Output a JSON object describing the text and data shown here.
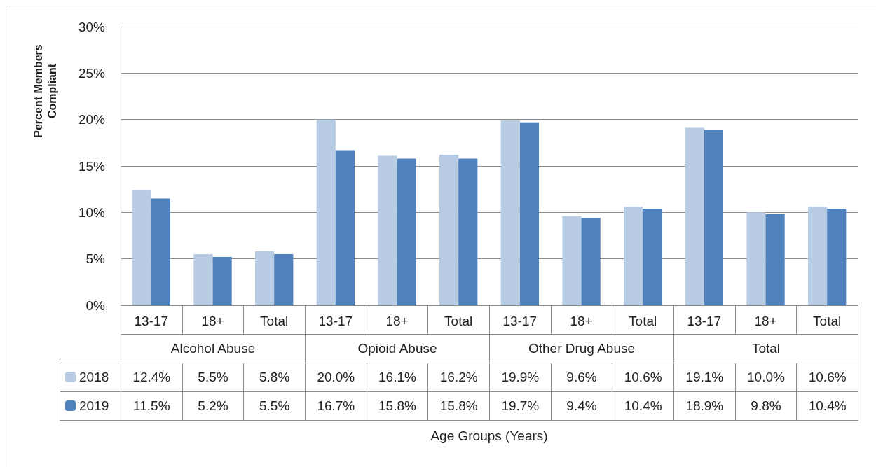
{
  "chart_data": {
    "type": "bar",
    "ylabel": "Percent Members Compliant",
    "categories": [
      "13-17",
      "18+",
      "Total",
      "13-17",
      "18+",
      "Total",
      "13-17",
      "18+",
      "Total",
      "13-17",
      "18+",
      "Total"
    ],
    "annotations": [
      "Alcohol Abuse",
      "Opioid Abuse",
      "Other Drug Abuse",
      "Total",
      "Age Groups (Years)"
    ],
    "series": [
      {
        "name": "2018",
        "color": "#b8cce4",
        "values": [
          12.4,
          5.5,
          5.8,
          20.0,
          16.1,
          16.2,
          19.9,
          9.6,
          10.6,
          19.1,
          10.0,
          10.6
        ],
        "value_labels": [
          "12.4%",
          "5.5%",
          "5.8%",
          "20.0%",
          "16.1%",
          "16.2%",
          "19.9%",
          "9.6%",
          "10.6%",
          "19.1%",
          "10.0%",
          "10.6%"
        ]
      },
      {
        "name": "2019",
        "color": "#4f81bd",
        "values": [
          11.5,
          5.2,
          5.5,
          16.7,
          15.8,
          15.8,
          19.7,
          9.4,
          10.4,
          18.9,
          9.8,
          10.4
        ],
        "value_labels": [
          "11.5%",
          "5.2%",
          "5.5%",
          "16.7%",
          "15.8%",
          "15.8%",
          "19.7%",
          "9.4%",
          "10.4%",
          "18.9%",
          "9.8%",
          "10.4%"
        ]
      }
    ],
    "ylim": [
      0,
      30
    ],
    "yticks": [
      {
        "value": 0,
        "label": "0%"
      },
      {
        "value": 5,
        "label": "5%"
      },
      {
        "value": 10,
        "label": "10%"
      },
      {
        "value": 15,
        "label": "15%"
      },
      {
        "value": 20,
        "label": "20%"
      },
      {
        "value": 25,
        "label": "25%"
      },
      {
        "value": 30,
        "label": "30%"
      }
    ],
    "grid": "y",
    "legend": "bottom left"
  }
}
